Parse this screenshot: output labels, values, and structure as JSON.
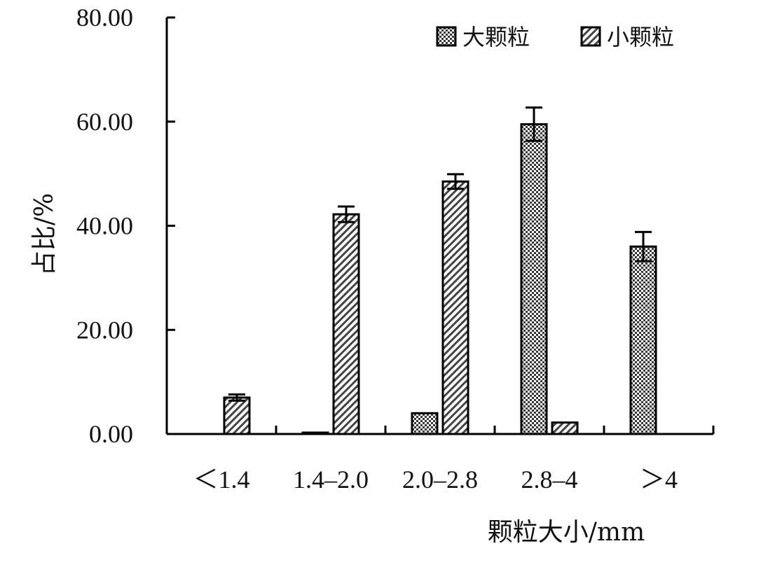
{
  "chart_data": {
    "type": "bar",
    "categories": [
      "＜1.4",
      "1.4–2.0",
      "2.0–2.8",
      "2.8–4",
      "＞4"
    ],
    "series": [
      {
        "name": "大颗粒",
        "values": [
          0.0,
          0.2,
          4.0,
          59.5,
          36.0
        ],
        "errors": [
          0.0,
          0.0,
          0.0,
          3.2,
          2.8
        ]
      },
      {
        "name": "小颗粒",
        "values": [
          7.0,
          42.2,
          48.5,
          2.2,
          0.0
        ],
        "errors": [
          0.6,
          1.5,
          1.4,
          0.0,
          0.0
        ]
      }
    ],
    "y_ticks": [
      "0.00",
      "20.00",
      "40.00",
      "60.00",
      "80.00"
    ],
    "xlabel": "颗粒大小/mm",
    "ylabel": "占比/%",
    "ylim": [
      0,
      80
    ],
    "grid": false,
    "legend_position": "top-right"
  }
}
